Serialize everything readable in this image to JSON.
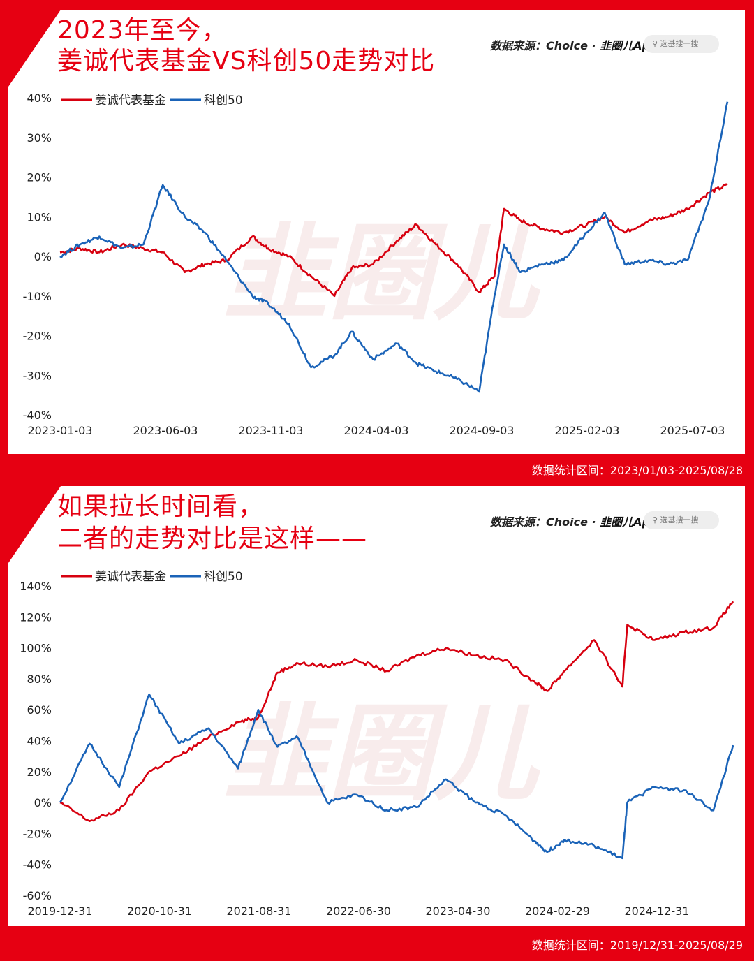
{
  "panels": [
    {
      "title_line1": "2023年至今，",
      "title_line2": "姜诚代表基金VS科创50走势对比",
      "source_label": "数据来源：Choice · ",
      "brand": "韭圈儿App",
      "search_placeholder": "选基搜一搜",
      "range_text": "数据统计区间：2023/01/03-2025/08/28",
      "watermark": "韭圈儿"
    },
    {
      "title_line1": "如果拉长时间看，",
      "title_line2": "二者的走势对比是这样——",
      "source_label": "数据来源：Choice · ",
      "brand": "韭圈儿App",
      "search_placeholder": "选基搜一搜",
      "range_text": "数据统计区间：2019/12/31-2025/08/29",
      "watermark": "韭圈儿"
    }
  ],
  "chart_data": [
    {
      "type": "line",
      "title": "",
      "ylim": [
        -40,
        40
      ],
      "yticks": [
        40,
        30,
        20,
        10,
        0,
        -10,
        -20,
        -30,
        -40
      ],
      "ytick_labels": [
        "40%",
        "30%",
        "20%",
        "10%",
        "0%",
        "-10%",
        "-20%",
        "-30%",
        "-40%"
      ],
      "xtick_labels": [
        "2023-01-03",
        "2023-06-03",
        "2023-11-03",
        "2024-04-03",
        "2024-09-03",
        "2025-02-03",
        "2025-07-03"
      ],
      "legend_position": "top-left",
      "x": [
        "2023-01-03",
        "2023-02-01",
        "2023-03-01",
        "2023-04-03",
        "2023-05-04",
        "2023-06-01",
        "2023-07-03",
        "2023-08-01",
        "2023-09-01",
        "2023-10-09",
        "2023-11-01",
        "2023-12-01",
        "2024-01-02",
        "2024-02-05",
        "2024-03-01",
        "2024-04-01",
        "2024-05-06",
        "2024-06-03",
        "2024-07-01",
        "2024-08-01",
        "2024-09-02",
        "2024-09-24",
        "2024-10-08",
        "2024-11-01",
        "2024-12-02",
        "2025-01-02",
        "2025-02-05",
        "2025-03-03",
        "2025-04-01",
        "2025-05-06",
        "2025-06-03",
        "2025-07-01",
        "2025-08-01",
        "2025-08-28"
      ],
      "series": [
        {
          "name": "姜诚代表基金",
          "color": "#d7000f",
          "values": [
            1,
            2,
            1,
            3,
            2,
            1,
            -4,
            -2,
            -1,
            5,
            2,
            0,
            -5,
            -10,
            -3,
            -2,
            4,
            8,
            3,
            -2,
            -9,
            -5,
            12,
            9,
            7,
            6,
            8,
            10,
            6,
            9,
            10,
            12,
            16,
            18
          ]
        },
        {
          "name": "科创50",
          "color": "#1a63b8",
          "values": [
            0,
            3,
            5,
            2,
            3,
            18,
            10,
            6,
            -1,
            -10,
            -12,
            -17,
            -28,
            -25,
            -19,
            -26,
            -22,
            -27,
            -29,
            -31,
            -34,
            -10,
            3,
            -4,
            -2,
            -1,
            6,
            11,
            -2,
            -1,
            -2,
            -1,
            14,
            39
          ]
        }
      ]
    },
    {
      "type": "line",
      "title": "",
      "ylim": [
        -60,
        140
      ],
      "yticks": [
        140,
        120,
        100,
        80,
        60,
        40,
        20,
        0,
        -20,
        -40,
        -60
      ],
      "ytick_labels": [
        "140%",
        "120%",
        "100%",
        "80%",
        "60%",
        "40%",
        "20%",
        "0%",
        "-20%",
        "-40%",
        "-60%"
      ],
      "xtick_labels": [
        "2019-12-31",
        "2020-10-31",
        "2021-08-31",
        "2022-06-30",
        "2023-04-30",
        "2024-02-29",
        "2024-12-31"
      ],
      "legend_position": "top-left",
      "x": [
        "2019-12-31",
        "2020-03-31",
        "2020-06-30",
        "2020-09-30",
        "2020-12-31",
        "2021-03-31",
        "2021-06-30",
        "2021-08-31",
        "2021-10-29",
        "2021-12-31",
        "2022-03-31",
        "2022-06-30",
        "2022-09-30",
        "2022-12-30",
        "2023-03-31",
        "2023-06-30",
        "2023-09-28",
        "2023-12-29",
        "2024-02-05",
        "2024-03-29",
        "2024-06-28",
        "2024-09-23",
        "2024-10-08",
        "2024-12-31",
        "2025-03-31",
        "2025-06-30",
        "2025-08-29"
      ],
      "series": [
        {
          "name": "姜诚代表基金",
          "color": "#d7000f",
          "values": [
            0,
            -12,
            -5,
            20,
            30,
            42,
            52,
            55,
            84,
            90,
            88,
            92,
            85,
            95,
            100,
            95,
            92,
            78,
            72,
            85,
            105,
            75,
            115,
            105,
            110,
            113,
            130
          ]
        },
        {
          "name": "科创50",
          "color": "#1a63b8",
          "values": [
            0,
            38,
            10,
            70,
            38,
            48,
            22,
            60,
            36,
            42,
            0,
            5,
            -5,
            -3,
            15,
            0,
            -8,
            -25,
            -32,
            -24,
            -28,
            -36,
            0,
            10,
            8,
            -5,
            37
          ]
        }
      ]
    }
  ]
}
